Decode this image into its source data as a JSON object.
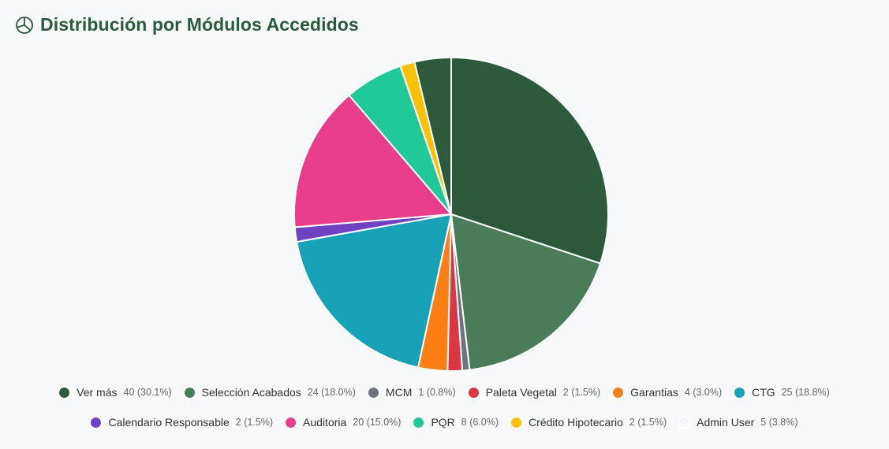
{
  "header": {
    "title": "Distribución por Módulos Accedidos",
    "icon": "pie-chart-icon"
  },
  "chart_data": {
    "type": "pie",
    "title": "Distribución por Módulos Accedidos",
    "legend_position": "bottom",
    "slices": [
      {
        "label": "Ver más",
        "value": 40,
        "percent": "30.1%",
        "display": "40 (30.1%)",
        "color": "#2d5a3d"
      },
      {
        "label": "Selección Acabados",
        "value": 24,
        "percent": "18.0%",
        "display": "24 (18.0%)",
        "color": "#4a7c59"
      },
      {
        "label": "MCM",
        "value": 1,
        "percent": "0.8%",
        "display": "1 (0.8%)",
        "color": "#6c757d"
      },
      {
        "label": "Paleta Vegetal",
        "value": 2,
        "percent": "1.5%",
        "display": "2 (1.5%)",
        "color": "#dc3545"
      },
      {
        "label": "Garantias",
        "value": 4,
        "percent": "3.0%",
        "display": "4 (3.0%)",
        "color": "#fd7e14"
      },
      {
        "label": "CTG",
        "value": 25,
        "percent": "18.8%",
        "display": "25 (18.8%)",
        "color": "#17a2b8"
      },
      {
        "label": "Calendario Responsable",
        "value": 2,
        "percent": "1.5%",
        "display": "2 (1.5%)",
        "color": "#6f42c1"
      },
      {
        "label": "Auditoria",
        "value": 20,
        "percent": "15.0%",
        "display": "20 (15.0%)",
        "color": "#e83e8c"
      },
      {
        "label": "PQR",
        "value": 8,
        "percent": "6.0%",
        "display": "8 (6.0%)",
        "color": "#20c997"
      },
      {
        "label": "Crédito Hipotecario",
        "value": 2,
        "percent": "1.5%",
        "display": "2 (1.5%)",
        "color": "#ffc107"
      },
      {
        "label": "Admin User",
        "value": 5,
        "percent": "3.8%",
        "display": "5 (3.8%)",
        "color": "#2d5a3d",
        "swatch_color": "#f5f7fa"
      }
    ]
  }
}
